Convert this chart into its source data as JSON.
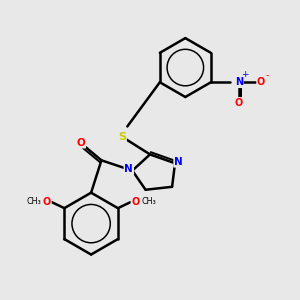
{
  "background_color": "#e8e8e8",
  "bond_color": "#000000",
  "bond_width": 1.8,
  "atom_colors": {
    "N": "#0000ff",
    "O": "#ff0000",
    "S": "#cccc00",
    "C": "#000000"
  },
  "figsize": [
    3.0,
    3.0
  ],
  "dpi": 100
}
